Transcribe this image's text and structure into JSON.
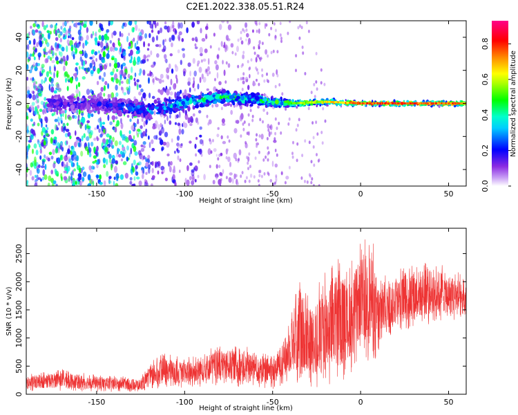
{
  "title": "C2E1.2022.338.05.51.R24",
  "colors": {
    "snr_line": "#ee3333",
    "spectrogram_background": "#ffffff",
    "colormap": [
      "#ffffff",
      "#8a2be2",
      "#0000ff",
      "#00ffff",
      "#00ff00",
      "#ffff00",
      "#ff8800",
      "#ff0000",
      "#ff00aa"
    ]
  },
  "chart_data": [
    {
      "type": "heatmap",
      "title": "C2E1.2022.338.05.51.R24",
      "xlabel": "Height of straight line (km)",
      "ylabel": "Frequency (Hz)",
      "xlim": [
        -190,
        60
      ],
      "ylim": [
        -50,
        50
      ],
      "x_ticks": [
        -150,
        -100,
        -50,
        0,
        50
      ],
      "y_ticks": [
        -40,
        -20,
        0,
        20,
        40
      ],
      "colorbar": {
        "label": "Normalized spectral amplitude",
        "range": [
          0,
          0.93
        ],
        "ticks": [
          "0.0",
          "0.2",
          "0.4",
          "0.6",
          "0.8"
        ],
        "tick_values": [
          0.0,
          0.2,
          0.4,
          0.6,
          0.8
        ]
      },
      "signal_band": {
        "description_free": true,
        "x": [
          -175,
          -150,
          -120,
          -100,
          -80,
          -60,
          -40,
          -20,
          0,
          20,
          40,
          60
        ],
        "center_freq": [
          0,
          0,
          -4,
          0,
          4,
          2,
          0,
          1,
          0,
          0,
          0,
          0
        ],
        "half_width": [
          8,
          8,
          7,
          7,
          6,
          5,
          3.5,
          2.5,
          2,
          2,
          2,
          2
        ],
        "peak_amplitude": [
          0.2,
          0.18,
          0.35,
          0.4,
          0.45,
          0.45,
          0.6,
          0.7,
          0.85,
          0.88,
          0.85,
          0.8
        ]
      },
      "grid": false
    },
    {
      "type": "line",
      "xlabel": "Height of straight line (km)",
      "ylabel": "SNR (10 * v/v)",
      "xlim": [
        -190,
        60
      ],
      "ylim": [
        0,
        2950
      ],
      "x_ticks": [
        -150,
        -100,
        -50,
        0,
        50
      ],
      "y_ticks": [
        0,
        500,
        1000,
        1500,
        2000,
        2500
      ],
      "envelope": {
        "x": [
          -190,
          -170,
          -150,
          -125,
          -115,
          -100,
          -80,
          -60,
          -50,
          -42,
          -35,
          -28,
          -22,
          -18,
          -12,
          -8,
          -5,
          0,
          6,
          8,
          10,
          15,
          25,
          35,
          45,
          55,
          60
        ],
        "upper": [
          350,
          450,
          350,
          300,
          750,
          650,
          900,
          850,
          700,
          1200,
          2200,
          1800,
          2100,
          2400,
          2600,
          2200,
          2400,
          2700,
          2950,
          2600,
          2200,
          2100,
          2300,
          2400,
          2350,
          2200,
          2000
        ],
        "lower": [
          50,
          60,
          40,
          40,
          80,
          120,
          150,
          100,
          90,
          200,
          150,
          100,
          80,
          100,
          150,
          300,
          400,
          700,
          500,
          150,
          700,
          1000,
          1100,
          1200,
          1300,
          1250,
          1200
        ]
      },
      "grid": false
    }
  ]
}
